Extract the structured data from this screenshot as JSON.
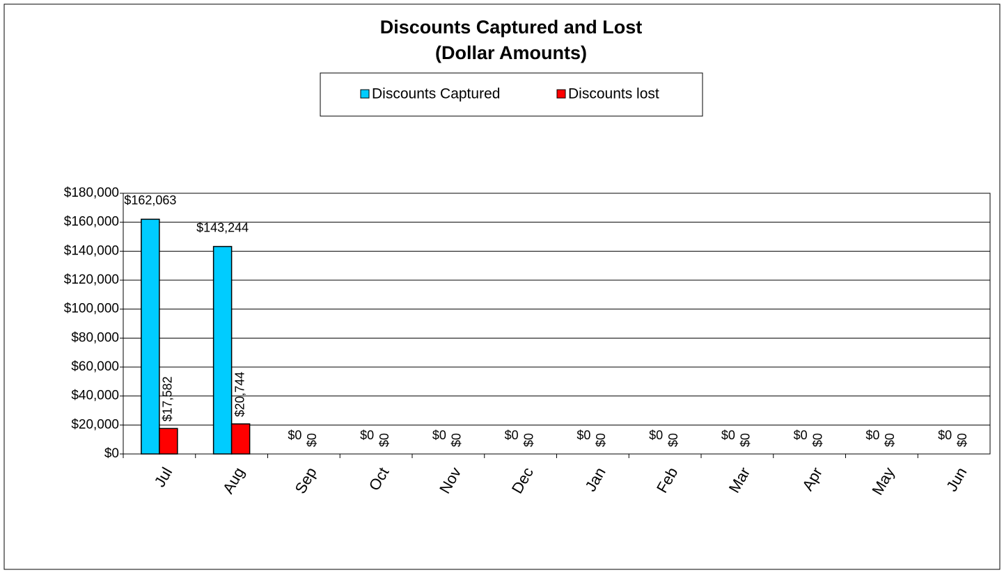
{
  "chart_data": {
    "type": "bar",
    "title": "Discounts Captured and Lost",
    "subtitle": "(Dollar Amounts)",
    "categories": [
      "Jul",
      "Aug",
      "Sep",
      "Oct",
      "Nov",
      "Dec",
      "Jan",
      "Feb",
      "Mar",
      "Apr",
      "May",
      "Jun"
    ],
    "series": [
      {
        "name": "Discounts Captured",
        "color": "#00ccff",
        "values": [
          162063,
          143244,
          0,
          0,
          0,
          0,
          0,
          0,
          0,
          0,
          0,
          0
        ],
        "value_labels": [
          "$162,063",
          "$143,244",
          "$0",
          "$0",
          "$0",
          "$0",
          "$0",
          "$0",
          "$0",
          "$0",
          "$0",
          "$0"
        ]
      },
      {
        "name": "Discounts lost",
        "color": "#ff0000",
        "values": [
          17582,
          20744,
          0,
          0,
          0,
          0,
          0,
          0,
          0,
          0,
          0,
          0
        ],
        "value_labels": [
          "$17,582",
          "$20,744",
          "$0",
          "$0",
          "$0",
          "$0",
          "$0",
          "$0",
          "$0",
          "$0",
          "$0",
          "$0"
        ]
      }
    ],
    "ylim": [
      0,
      180000
    ],
    "yticks": [
      {
        "value": 0,
        "label": "$0"
      },
      {
        "value": 20000,
        "label": "$20,000"
      },
      {
        "value": 40000,
        "label": "$40,000"
      },
      {
        "value": 60000,
        "label": "$60,000"
      },
      {
        "value": 80000,
        "label": "$80,000"
      },
      {
        "value": 100000,
        "label": "$100,000"
      },
      {
        "value": 120000,
        "label": "$120,000"
      },
      {
        "value": 140000,
        "label": "$140,000"
      },
      {
        "value": 160000,
        "label": "$160,000"
      },
      {
        "value": 180000,
        "label": "$180,000"
      }
    ],
    "grid": true,
    "legend": "top"
  }
}
